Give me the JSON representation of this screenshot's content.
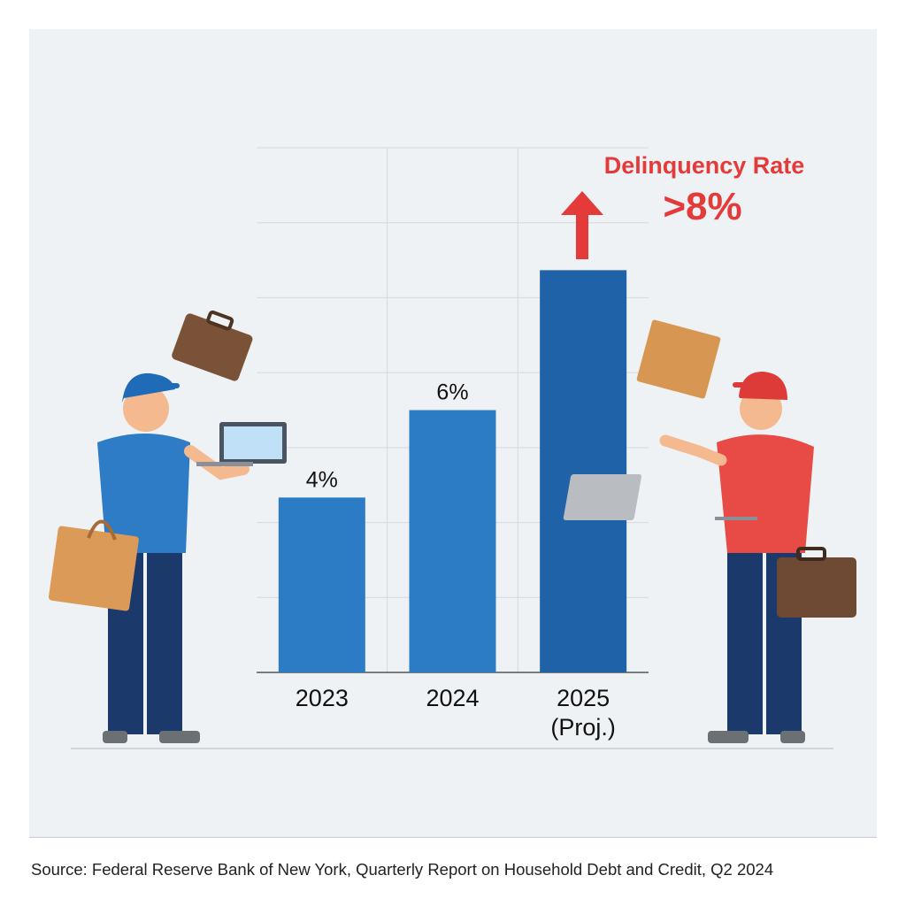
{
  "chart_data": {
    "type": "bar",
    "categories": [
      "2023",
      "2024",
      "2025 (Proj.)"
    ],
    "category_lines": [
      [
        "2023"
      ],
      [
        "2024"
      ],
      [
        "2025",
        "(Proj.)"
      ]
    ],
    "values": [
      4,
      6,
      9.2
    ],
    "data_labels": [
      "4%",
      "6%",
      ""
    ],
    "ylim": [
      0,
      12
    ],
    "grid": true,
    "title": "",
    "xlabel": "",
    "ylabel": "",
    "annotation": {
      "title": "Delinquency Rate",
      "value": ">8%",
      "icon": "arrow-up-icon"
    },
    "colors": {
      "bars": [
        "#2b7cc4",
        "#2b7cc4",
        "#1f62a8"
      ],
      "annotation": "#e53a3a",
      "grid": "#d3d8de",
      "background": "#eff2f5"
    }
  },
  "footer": {
    "source": "Source: Federal Reserve Bank of New York, Quarterly Report on Household Debt and Credit, Q2 2024"
  }
}
